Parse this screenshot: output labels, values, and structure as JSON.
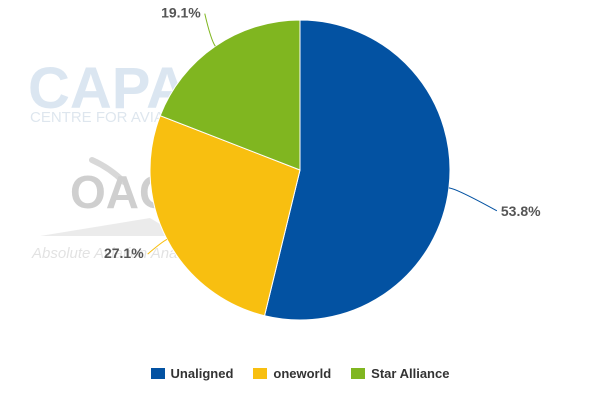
{
  "watermark": {
    "logo_top": "CAPA",
    "logo_top_sub": "CENTRE FOR AVIATION",
    "logo_bottom": "OAG",
    "logo_bottom_sub": "Absolute Aviation Analysis"
  },
  "chart_data": {
    "type": "pie",
    "start_angle_deg": 0,
    "direction": "clockwise",
    "slices": [
      {
        "name": "Unaligned",
        "value": 53.8,
        "label": "53.8%",
        "color": "#0352a2",
        "label_side": "right"
      },
      {
        "name": "oneworld",
        "value": 27.1,
        "label": "27.1%",
        "color": "#f8bf10",
        "label_side": "left"
      },
      {
        "name": "Star Alliance",
        "value": 19.1,
        "label": "19.1%",
        "color": "#80b620",
        "label_side": "left"
      }
    ],
    "legend_position": "bottom"
  }
}
